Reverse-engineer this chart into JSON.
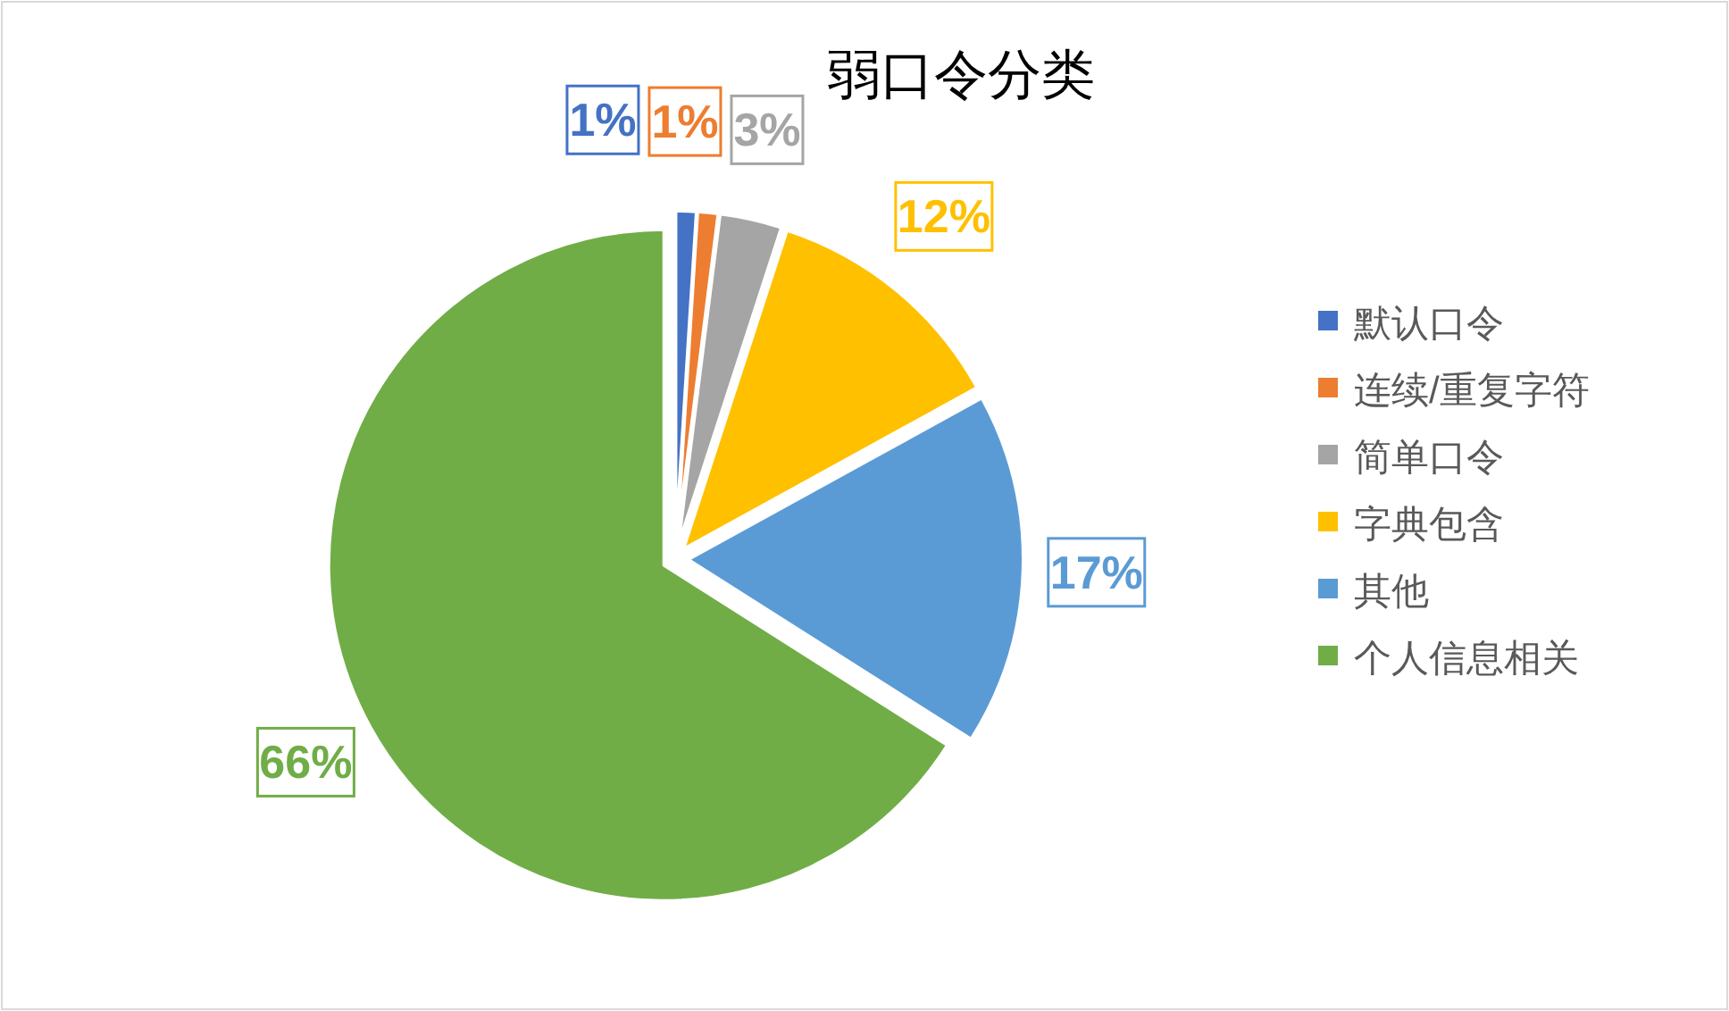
{
  "chart_data": {
    "type": "pie",
    "title": "弱口令分类",
    "categories": [
      "默认口令",
      "连续/重复字符",
      "简单口令",
      "字典包含",
      "其他",
      "个人信息相关"
    ],
    "values": [
      1,
      1,
      3,
      12,
      17,
      66
    ],
    "colors": [
      "#4472c4",
      "#ed7d31",
      "#a5a5a5",
      "#ffc000",
      "#5b9bd5",
      "#70ad47"
    ],
    "value_labels": [
      "1%",
      "1%",
      "3%",
      "12%",
      "17%",
      "66%"
    ],
    "legend": "right"
  }
}
